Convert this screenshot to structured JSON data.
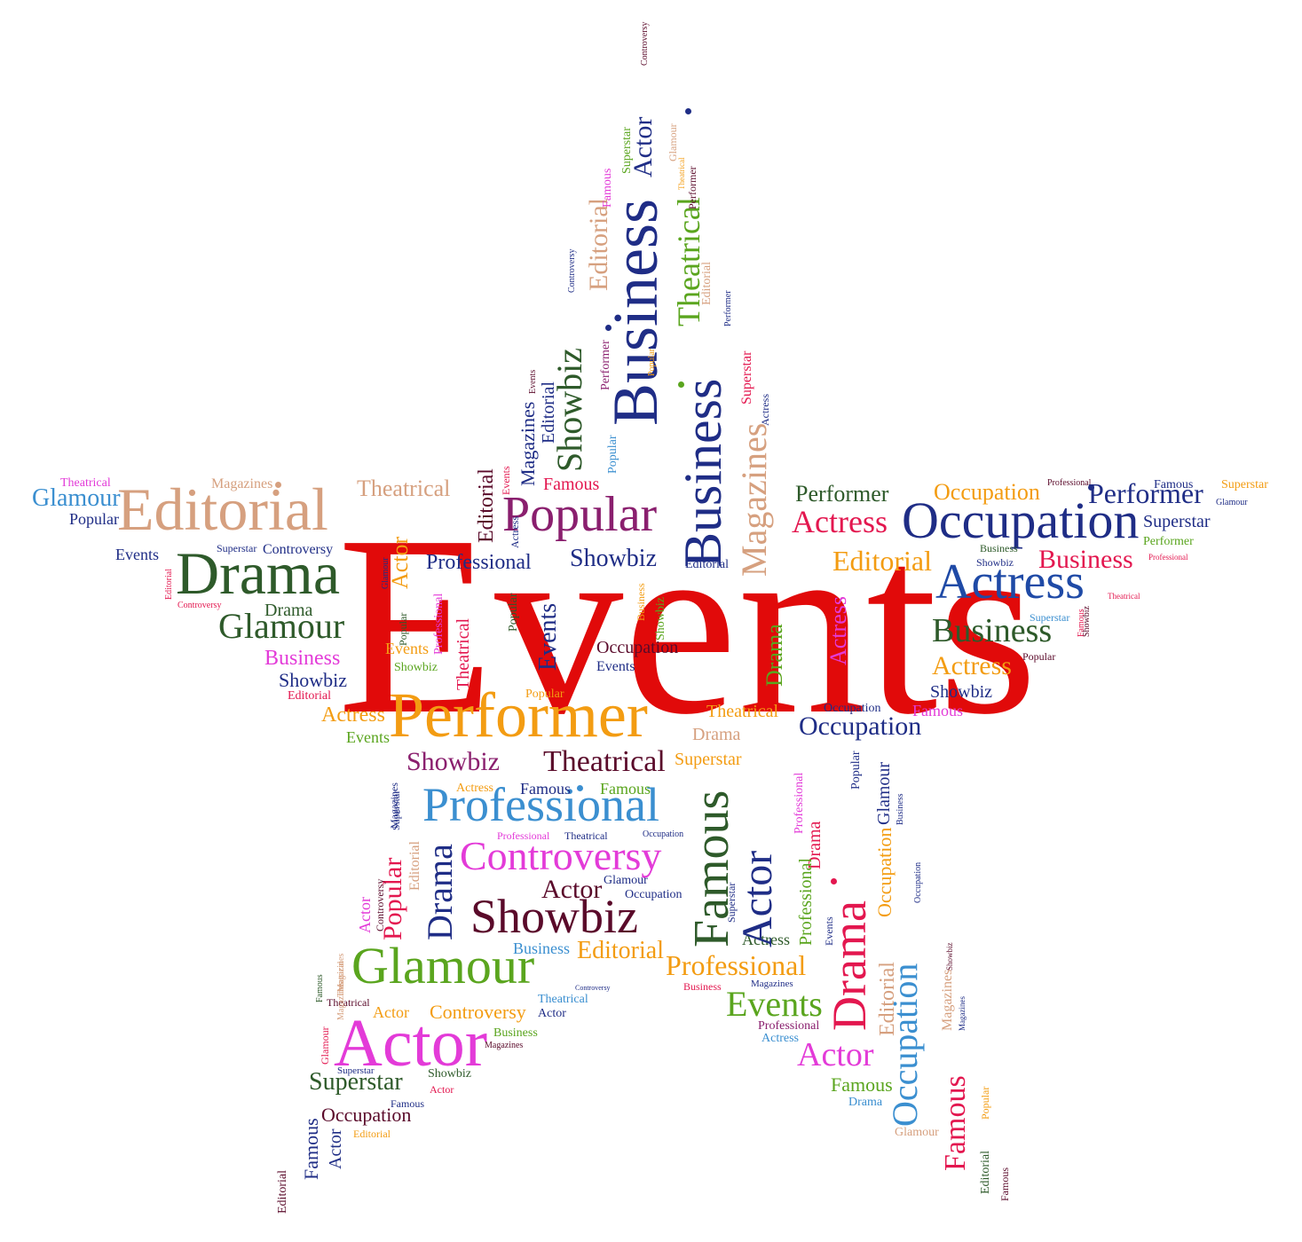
{
  "words": [
    {
      "text": "Events",
      "color": "#e10a0a"
    },
    {
      "text": "Performer",
      "color": "#f39c12"
    },
    {
      "text": "Editorial",
      "color": "#d6a07f"
    },
    {
      "text": "Glamour",
      "color": "#3b8fd0"
    },
    {
      "text": "Theatrical",
      "color": "#e33bd8"
    },
    {
      "text": "Magazines",
      "color": "#d6a07f"
    },
    {
      "text": "Popular",
      "color": "#1f2d86"
    },
    {
      "text": "Theatrical",
      "color": "#d6a07f"
    },
    {
      "text": "Drama",
      "color": "#2e5a2a"
    },
    {
      "text": "Glamour",
      "color": "#2e5a2a"
    },
    {
      "text": "Drama",
      "color": "#2e5a2a"
    },
    {
      "text": "Business",
      "color": "#e33bd8"
    },
    {
      "text": "Showbiz",
      "color": "#1f2d86"
    },
    {
      "text": "Editorial",
      "color": "#e3174f"
    },
    {
      "text": "Actress",
      "color": "#f39c12"
    },
    {
      "text": "Events",
      "color": "#5aa51e"
    },
    {
      "text": "Events",
      "color": "#1f2d86"
    },
    {
      "text": "Superstar",
      "color": "#1f2d86"
    },
    {
      "text": "Controversy",
      "color": "#1f2d86"
    },
    {
      "text": "Controversy",
      "color": "#e3174f"
    },
    {
      "text": "Popular",
      "color": "#8a1f6e"
    },
    {
      "text": "Professional",
      "color": "#1f2d86"
    },
    {
      "text": "Showbiz",
      "color": "#1f2d86"
    },
    {
      "text": "Editorial",
      "color": "#1f2d86"
    },
    {
      "text": "Performer",
      "color": "#2e5a2a"
    },
    {
      "text": "Occupation",
      "color": "#f39c12"
    },
    {
      "text": "Professional",
      "color": "#5a0a2a"
    },
    {
      "text": "Performer",
      "color": "#1f2d86"
    },
    {
      "text": "Famous",
      "color": "#1f2d86"
    },
    {
      "text": "Superstar",
      "color": "#f39c12"
    },
    {
      "text": "Glamour",
      "color": "#1f2d86"
    },
    {
      "text": "Actress",
      "color": "#e3174f"
    },
    {
      "text": "Occupation",
      "color": "#1f2d86"
    },
    {
      "text": "Superstar",
      "color": "#1f2d86"
    },
    {
      "text": "Performer",
      "color": "#5aa51e"
    },
    {
      "text": "Editorial",
      "color": "#f39c12"
    },
    {
      "text": "Business",
      "color": "#2e5a2a"
    },
    {
      "text": "Showbiz",
      "color": "#1f2d86"
    },
    {
      "text": "Business",
      "color": "#e3174f"
    },
    {
      "text": "Professional",
      "color": "#e3174f"
    },
    {
      "text": "Actress",
      "color": "#1f4aa6"
    },
    {
      "text": "Theatrical",
      "color": "#e3174f"
    },
    {
      "text": "Business",
      "color": "#2e5a2a"
    },
    {
      "text": "Superstar",
      "color": "#3b8fd0"
    },
    {
      "text": "Actress",
      "color": "#f39c12"
    },
    {
      "text": "Popular",
      "color": "#5a0a2a"
    },
    {
      "text": "Showbiz",
      "color": "#1f2d86"
    },
    {
      "text": "Famous",
      "color": "#e33bd8"
    },
    {
      "text": "Occupation",
      "color": "#1f2d86"
    },
    {
      "text": "Occupation",
      "color": "#1f2d86"
    },
    {
      "text": "Theatrical",
      "color": "#f39c12"
    },
    {
      "text": "Drama",
      "color": "#d6a07f"
    },
    {
      "text": "Showbiz",
      "color": "#8a1f6e"
    },
    {
      "text": "Theatrical",
      "color": "#5a0a2a"
    },
    {
      "text": "Superstar",
      "color": "#f39c12"
    },
    {
      "text": "Professional",
      "color": "#3b8fd0"
    },
    {
      "text": "Actress",
      "color": "#f39c12"
    },
    {
      "text": "Famous",
      "color": "#1f2d86"
    },
    {
      "text": "Famous",
      "color": "#5aa51e"
    },
    {
      "text": "Controversy",
      "color": "#e33bd8"
    },
    {
      "text": "Professional",
      "color": "#e33bd8"
    },
    {
      "text": "Theatrical",
      "color": "#1f2d86"
    },
    {
      "text": "Occupation",
      "color": "#1f2d86"
    },
    {
      "text": "Actor",
      "color": "#5a0a2a"
    },
    {
      "text": "Glamour",
      "color": "#1f2d86"
    },
    {
      "text": "Occupation",
      "color": "#1f2d86"
    },
    {
      "text": "Showbiz",
      "color": "#5a0a2a"
    },
    {
      "text": "Business",
      "color": "#3b8fd0"
    },
    {
      "text": "Editorial",
      "color": "#f39c12"
    },
    {
      "text": "Professional",
      "color": "#f39c12"
    },
    {
      "text": "Actress",
      "color": "#2e5a2a"
    },
    {
      "text": "Business",
      "color": "#e3174f"
    },
    {
      "text": "Magazines",
      "color": "#1f2d86"
    },
    {
      "text": "Glamour",
      "color": "#5aa51e"
    },
    {
      "text": "Controversy",
      "color": "#1f2d86"
    },
    {
      "text": "Events",
      "color": "#5aa51e"
    },
    {
      "text": "Theatrical",
      "color": "#3b8fd0"
    },
    {
      "text": "Actor",
      "color": "#1f2d86"
    },
    {
      "text": "Theatrical",
      "color": "#5a0a2a"
    },
    {
      "text": "Actor",
      "color": "#f39c12"
    },
    {
      "text": "Controversy",
      "color": "#f39c12"
    },
    {
      "text": "Actor",
      "color": "#e33bd8"
    },
    {
      "text": "Business",
      "color": "#5aa51e"
    },
    {
      "text": "Magazines",
      "color": "#5a0a2a"
    },
    {
      "text": "Professional",
      "color": "#8a1f6e"
    },
    {
      "text": "Actress",
      "color": "#3b8fd0"
    },
    {
      "text": "Actor",
      "color": "#e33bd8"
    },
    {
      "text": "Superstar",
      "color": "#2e5a2a"
    },
    {
      "text": "Superstar",
      "color": "#1f2d86"
    },
    {
      "text": "Showbiz",
      "color": "#2e5a2a"
    },
    {
      "text": "Actor",
      "color": "#e3174f"
    },
    {
      "text": "Occupation",
      "color": "#5a0a2a"
    },
    {
      "text": "Famous",
      "color": "#1f2d86"
    },
    {
      "text": "Editorial",
      "color": "#f39c12"
    },
    {
      "text": "Famous",
      "color": "#5aa51e"
    },
    {
      "text": "Drama",
      "color": "#3b8fd0"
    },
    {
      "text": "Glamour",
      "color": "#d6a07f"
    },
    {
      "text": "Famous",
      "color": "#2e5a2a"
    },
    {
      "text": "Actor",
      "color": "#1f2d86"
    },
    {
      "text": "Editorial",
      "color": "#5a0a2a"
    },
    {
      "text": "Glamour",
      "color": "#e3174f"
    },
    {
      "text": "Famous",
      "color": "#2e5a2a"
    },
    {
      "text": "Magazines",
      "color": "#d6a07f"
    },
    {
      "text": "Magazines",
      "color": "#1f2d86"
    },
    {
      "text": "Showbiz",
      "color": "#5a0a2a"
    },
    {
      "text": "Famous",
      "color": "#e3174f"
    },
    {
      "text": "Business",
      "color": "#1f2d86"
    },
    {
      "text": "Showbiz",
      "color": "#2e5a2a"
    },
    {
      "text": "Business",
      "color": "#1f2d86"
    },
    {
      "text": "Theatrical",
      "color": "#5aa51e"
    },
    {
      "text": "Editorial",
      "color": "#d6a07f"
    },
    {
      "text": "Actor",
      "color": "#1f2d86"
    },
    {
      "text": "Famous",
      "color": "#e33bd8"
    },
    {
      "text": "Superstar",
      "color": "#5aa51e"
    },
    {
      "text": "Controversy",
      "color": "#5a0a2a"
    },
    {
      "text": "Glamour",
      "color": "#d6a07f"
    },
    {
      "text": "Theatrical",
      "color": "#f39c12"
    },
    {
      "text": "Performer",
      "color": "#5a0a2a"
    },
    {
      "text": "Editorial",
      "color": "#d6a07f"
    },
    {
      "text": "Performer",
      "color": "#1f2d86"
    },
    {
      "text": "Popular",
      "color": "#f39c12"
    },
    {
      "text": "Controversy",
      "color": "#1f2d86"
    },
    {
      "text": "Performer",
      "color": "#8a1f6e"
    },
    {
      "text": "Popular",
      "color": "#3b8fd0"
    },
    {
      "text": "Events",
      "color": "#f39c12"
    },
    {
      "text": "Magazines",
      "color": "#1f2d86"
    },
    {
      "text": "Editorial",
      "color": "#1f2d86"
    },
    {
      "text": "Famous",
      "color": "#e3174f"
    },
    {
      "text": "Showbiz",
      "color": "#2e5a2a"
    },
    {
      "text": "Popular",
      "color": "#1f2d86"
    },
    {
      "text": "Events",
      "color": "#5a0a2a"
    },
    {
      "text": "Magazines",
      "color": "#d6a07f"
    },
    {
      "text": "Superstar",
      "color": "#e3174f"
    },
    {
      "text": "Actress",
      "color": "#1f2d86"
    },
    {
      "text": "Editorial",
      "color": "#5a0a2a"
    },
    {
      "text": "Events",
      "color": "#e3174f"
    },
    {
      "text": "Popular",
      "color": "#f39c12"
    },
    {
      "text": "Actress",
      "color": "#1f2d86"
    },
    {
      "text": "Actor",
      "color": "#f39c12"
    },
    {
      "text": "Occupation",
      "color": "#5a0a2a"
    },
    {
      "text": "Glamour",
      "color": "#1f2d86"
    },
    {
      "text": "Drama",
      "color": "#5aa51e"
    },
    {
      "text": "Actress",
      "color": "#e33bd8"
    },
    {
      "text": "Business",
      "color": "#f39c12"
    },
    {
      "text": "Showbiz",
      "color": "#5aa51e"
    },
    {
      "text": "Popular",
      "color": "#2e5a2a"
    },
    {
      "text": "Showbiz",
      "color": "#e3174f"
    },
    {
      "text": "Professional",
      "color": "#e33bd8"
    },
    {
      "text": "Theatrical",
      "color": "#e3174f"
    },
    {
      "text": "Popular",
      "color": "#2e5a2a"
    },
    {
      "text": "Editorial",
      "color": "#e3174f"
    },
    {
      "text": "Actor",
      "color": "#e33bd8"
    },
    {
      "text": "Controversy",
      "color": "#5a0a2a"
    },
    {
      "text": "Popular",
      "color": "#e3174f"
    },
    {
      "text": "Drama",
      "color": "#1f2d86"
    },
    {
      "text": "Theatrical",
      "color": "#d6a07f"
    },
    {
      "text": "Editorial",
      "color": "#d6a07f"
    },
    {
      "text": "Magazines",
      "color": "#d6a07f"
    },
    {
      "text": "Famous",
      "color": "#1f2d86"
    },
    {
      "text": "Superstar",
      "color": "#1f2d86"
    },
    {
      "text": "Professional",
      "color": "#e33bd8"
    },
    {
      "text": "Professional",
      "color": "#5aa51e"
    },
    {
      "text": "Events",
      "color": "#1f2d86"
    },
    {
      "text": "Drama",
      "color": "#e3174f"
    },
    {
      "text": "Magazines",
      "color": "#f39c12"
    },
    {
      "text": "Controversy",
      "color": "#e3174f"
    },
    {
      "text": "Drama",
      "color": "#e3174f"
    },
    {
      "text": "Popular",
      "color": "#1f2d86"
    },
    {
      "text": "Events",
      "color": "#2e5a2a"
    },
    {
      "text": "Performer",
      "color": "#1f2d86"
    },
    {
      "text": "Occupation",
      "color": "#f39c12"
    },
    {
      "text": "Editorial",
      "color": "#d6a07f"
    },
    {
      "text": "Occupation",
      "color": "#3b8fd0"
    },
    {
      "text": "Glamour",
      "color": "#1f2d86"
    },
    {
      "text": "Business",
      "color": "#1f2d86"
    },
    {
      "text": "Occupation",
      "color": "#1f2d86"
    },
    {
      "text": "Magazines",
      "color": "#d6a07f"
    },
    {
      "text": "Showbiz",
      "color": "#5a0a2a"
    },
    {
      "text": "Magazines",
      "color": "#1f2d86"
    },
    {
      "text": "Famous",
      "color": "#e3174f"
    },
    {
      "text": "Popular",
      "color": "#f39c12"
    },
    {
      "text": "Editorial",
      "color": "#2e5a2a"
    },
    {
      "text": "Famous",
      "color": "#5a0a2a"
    }
  ]
}
